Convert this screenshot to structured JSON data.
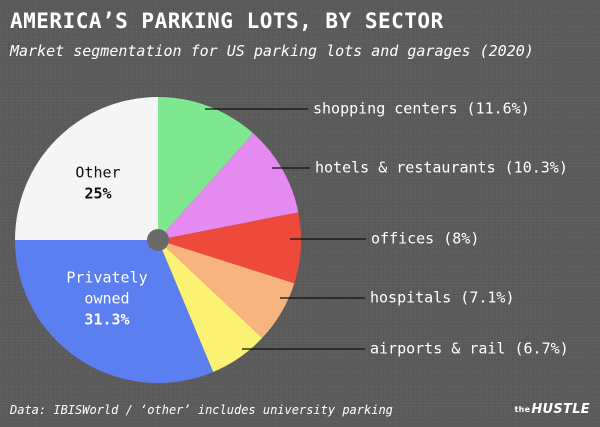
{
  "header": {
    "title": "AMERICA’S PARKING LOTS, BY SECTOR",
    "subtitle": "Market segmentation for US parking lots and garages (2020)"
  },
  "footer": {
    "source": "Data: IBISWorld / ‘other’ includes university parking",
    "brand_prefix": "the",
    "brand_name": "HUSTLE"
  },
  "chart_data": {
    "type": "pie",
    "title": "AMERICA’S PARKING LOTS, BY SECTOR",
    "subtitle": "Market segmentation for US parking lots and garages (2020)",
    "unit": "%",
    "slices": [
      {
        "label": "shopping centers",
        "value": 11.6,
        "display": "shopping centers (11.6%)",
        "color": "#7de88f"
      },
      {
        "label": "hotels & restaurants",
        "value": 10.3,
        "display": "hotels & restaurants (10.3%)",
        "color": "#e58af0"
      },
      {
        "label": "offices",
        "value": 8,
        "display": "offices (8%)",
        "color": "#ee4a3c"
      },
      {
        "label": "hospitals",
        "value": 7.1,
        "display": "hospitals (7.1%)",
        "color": "#f7b47e"
      },
      {
        "label": "airports & rail",
        "value": 6.7,
        "display": "airports & rail (6.7%)",
        "color": "#fbf173"
      },
      {
        "label": "Privately owned",
        "value": 31.3,
        "display": "31.3%",
        "label_lines": [
          "Privately",
          "owned"
        ],
        "color": "#5b7ef0"
      },
      {
        "label": "Other",
        "value": 25,
        "display": "25%",
        "label_lines": [
          "Other"
        ],
        "color": "#f5f5f5"
      }
    ],
    "start_angle_deg": 0,
    "direction": "clockwise",
    "center_hole_color": "#6a6a6a"
  }
}
